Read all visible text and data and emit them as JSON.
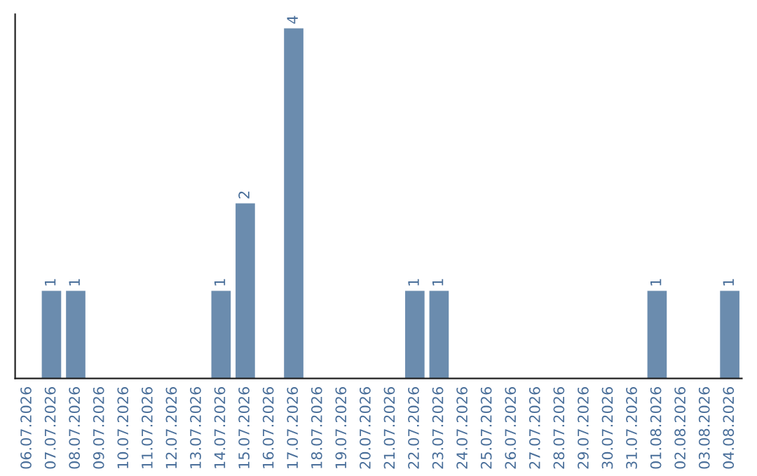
{
  "chart_data": {
    "type": "bar",
    "categories": [
      "06.07.2026",
      "07.07.2026",
      "08.07.2026",
      "09.07.2026",
      "10.07.2026",
      "11.07.2026",
      "12.07.2026",
      "13.07.2026",
      "14.07.2026",
      "15.07.2026",
      "16.07.2026",
      "17.07.2026",
      "18.07.2026",
      "19.07.2026",
      "20.07.2026",
      "21.07.2026",
      "22.07.2026",
      "23.07.2026",
      "24.07.2026",
      "25.07.2026",
      "26.07.2026",
      "27.07.2026",
      "28.07.2026",
      "29.07.2026",
      "30.07.2026",
      "31.07.2026",
      "01.08.2026",
      "02.08.2026",
      "03.08.2026",
      "04.08.2026"
    ],
    "values": [
      0,
      1,
      1,
      0,
      0,
      0,
      0,
      0,
      1,
      2,
      0,
      4,
      0,
      0,
      0,
      0,
      1,
      1,
      0,
      0,
      0,
      0,
      0,
      0,
      0,
      0,
      1,
      0,
      0,
      1
    ],
    "value_labels": [
      null,
      "1",
      "1",
      null,
      null,
      null,
      null,
      null,
      "1",
      "2",
      null,
      "4",
      null,
      null,
      null,
      null,
      "1",
      "1",
      null,
      null,
      null,
      null,
      null,
      null,
      null,
      null,
      "1",
      null,
      null,
      "1"
    ],
    "color": "#6b8cae",
    "grid": false
  }
}
